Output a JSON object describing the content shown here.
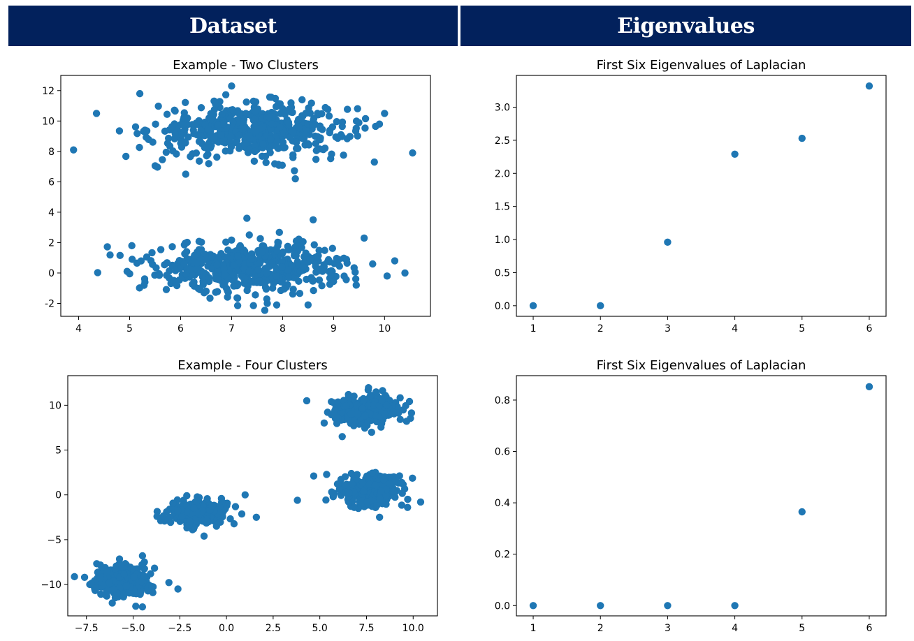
{
  "header": {
    "left_title": "Dataset",
    "right_title": "Eigenvalues"
  },
  "colors": {
    "header_bg": "#02215c",
    "marker": "#1f77b4"
  },
  "chart_data": [
    {
      "id": "two-clusters",
      "type": "scatter",
      "title": "Example - Two Clusters",
      "xlabel": "",
      "ylabel": "",
      "xlim": [
        3.65,
        10.9
      ],
      "ylim": [
        -2.85,
        13.0
      ],
      "xticks": [
        4,
        5,
        6,
        7,
        8,
        9,
        10
      ],
      "yticks": [
        -2,
        0,
        2,
        4,
        6,
        8,
        10,
        12
      ],
      "grid": false,
      "clusters": [
        {
          "center": [
            7.4,
            9.4
          ],
          "spread": [
            0.95,
            0.85
          ],
          "n": 500
        },
        {
          "center": [
            7.4,
            0.4
          ],
          "spread": [
            0.95,
            0.85
          ],
          "n": 500
        }
      ],
      "points": [
        [
          3.9,
          8.1
        ],
        [
          4.35,
          10.5
        ],
        [
          4.8,
          9.35
        ],
        [
          5.2,
          11.8
        ],
        [
          6.1,
          6.5
        ],
        [
          8.25,
          6.2
        ],
        [
          9.8,
          7.3
        ],
        [
          10.55,
          7.9
        ],
        [
          10.0,
          10.5
        ],
        [
          9.9,
          9.8
        ],
        [
          7.0,
          12.3
        ],
        [
          8.6,
          3.5
        ],
        [
          7.3,
          3.6
        ],
        [
          5.05,
          0.9
        ],
        [
          10.4,
          0.0
        ],
        [
          10.05,
          -0.2
        ],
        [
          8.5,
          -2.1
        ],
        [
          7.7,
          -2.0
        ],
        [
          5.3,
          -0.6
        ],
        [
          9.6,
          2.3
        ],
        [
          10.2,
          0.8
        ]
      ]
    },
    {
      "id": "eig-two",
      "type": "scatter",
      "title": "First Six Eigenvalues of Laplacian",
      "xlabel": "",
      "ylabel": "",
      "xlim": [
        0.75,
        6.25
      ],
      "ylim": [
        -0.16,
        3.48
      ],
      "xticks": [
        1,
        2,
        3,
        4,
        5,
        6
      ],
      "yticks": [
        "0.0",
        "0.5",
        "1.0",
        "1.5",
        "2.0",
        "2.5",
        "3.0"
      ],
      "grid": false,
      "x": [
        1,
        2,
        3,
        4,
        5,
        6
      ],
      "y": [
        0.0,
        0.0,
        0.96,
        2.29,
        2.53,
        3.32
      ]
    },
    {
      "id": "four-clusters",
      "type": "scatter",
      "title": "Example - Four Clusters",
      "xlabel": "",
      "ylabel": "",
      "xlim": [
        -8.5,
        11.3
      ],
      "ylim": [
        -13.5,
        13.3
      ],
      "xticks": [
        "−7.5",
        "−5.0",
        "−2.5",
        "0.0",
        "2.5",
        "5.0",
        "7.5",
        "10.0"
      ],
      "xtick_values": [
        -7.5,
        -5.0,
        -2.5,
        0.0,
        2.5,
        5.0,
        7.5,
        10.0
      ],
      "yticks": [
        "−10",
        "−5",
        "0",
        "5",
        "10"
      ],
      "ytick_values": [
        -10,
        -5,
        0,
        5,
        10
      ],
      "grid": false,
      "clusters": [
        {
          "center": [
            7.4,
            9.4
          ],
          "spread": [
            0.85,
            0.85
          ],
          "n": 330
        },
        {
          "center": [
            7.6,
            0.6
          ],
          "spread": [
            0.9,
            0.85
          ],
          "n": 330
        },
        {
          "center": [
            -1.5,
            -2.0
          ],
          "spread": [
            0.85,
            0.65
          ],
          "n": 330
        },
        {
          "center": [
            -5.6,
            -9.6
          ],
          "spread": [
            0.75,
            0.85
          ],
          "n": 330
        }
      ],
      "points": [
        [
          4.3,
          10.5
        ],
        [
          3.8,
          -0.6
        ],
        [
          10.4,
          -0.8
        ],
        [
          8.2,
          -2.5
        ],
        [
          -1.2,
          -4.6
        ],
        [
          1.6,
          -2.5
        ],
        [
          -7.6,
          -9.2
        ],
        [
          -4.5,
          -12.5
        ],
        [
          -2.6,
          -10.5
        ],
        [
          -4.5,
          -6.8
        ],
        [
          1.0,
          0.0
        ],
        [
          6.2,
          6.5
        ],
        [
          9.7,
          -1.4
        ]
      ]
    },
    {
      "id": "eig-four",
      "type": "scatter",
      "title": "First Six Eigenvalues of Laplacian",
      "xlabel": "",
      "ylabel": "",
      "xlim": [
        0.75,
        6.25
      ],
      "ylim": [
        -0.04,
        0.895
      ],
      "xticks": [
        1,
        2,
        3,
        4,
        5,
        6
      ],
      "yticks": [
        "0.0",
        "0.2",
        "0.4",
        "0.6",
        "0.8"
      ],
      "grid": false,
      "x": [
        1,
        2,
        3,
        4,
        5,
        6
      ],
      "y": [
        0.0,
        0.0,
        0.0,
        0.0,
        0.365,
        0.852
      ]
    }
  ]
}
